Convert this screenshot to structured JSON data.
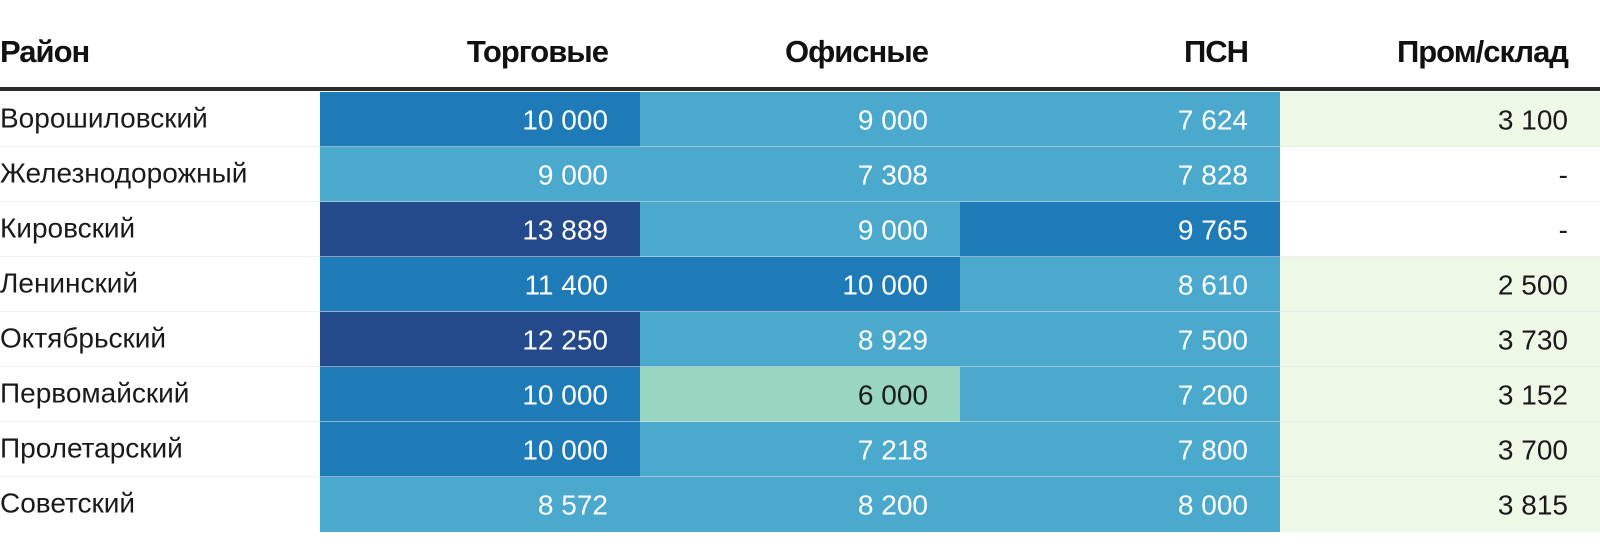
{
  "chart_data": {
    "type": "heatmap",
    "columns": [
      "Район",
      "Торговые",
      "Офисные",
      "ПСН",
      "Пром/склад"
    ],
    "rows": [
      {
        "district": "Ворошиловский",
        "values": [
          "10 000",
          "9 000",
          "7 624",
          "3 100"
        ]
      },
      {
        "district": "Железнодорожный",
        "values": [
          "9 000",
          "7 308",
          "7 828",
          "-"
        ]
      },
      {
        "district": "Кировский",
        "values": [
          "13 889",
          "9 000",
          "9 765",
          "-"
        ]
      },
      {
        "district": "Ленинский",
        "values": [
          "11 400",
          "10 000",
          "8 610",
          "2 500"
        ]
      },
      {
        "district": "Октябрьский",
        "values": [
          "12 250",
          "8 929",
          "7 500",
          "3 730"
        ]
      },
      {
        "district": "Первомайский",
        "values": [
          "10 000",
          "6 000",
          "7 200",
          "3 152"
        ]
      },
      {
        "district": "Пролетарский",
        "values": [
          "10 000",
          "7 218",
          "7 800",
          "3 700"
        ]
      },
      {
        "district": "Советский",
        "values": [
          "8 572",
          "8 200",
          "8 000",
          "3 815"
        ]
      }
    ],
    "color_scale": [
      {
        "min": 12000,
        "fill": "#244a8c",
        "text": "#ffffff"
      },
      {
        "min": 9500,
        "fill": "#1f7bb7",
        "text": "#ffffff"
      },
      {
        "min": 7000,
        "fill": "#4ba9cd",
        "text": "#ffffff"
      },
      {
        "min": 4000,
        "fill": "#98d6c2",
        "text": "#1a1a1a"
      },
      {
        "min": 1,
        "fill": "#eef8e6",
        "text": "#1a1a1a"
      }
    ],
    "colors": {
      "header_rule": "#2b2b2b",
      "row_rule": "#e4e4e4",
      "empty_fill": "#ffffff"
    }
  }
}
